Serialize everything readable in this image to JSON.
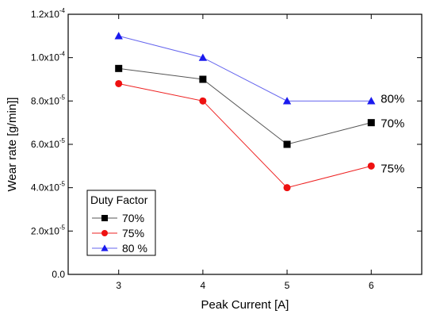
{
  "chart_data": {
    "type": "line",
    "xlabel": "Peak Current [A]",
    "ylabel": "Wear rate [g/min]]",
    "x": [
      3,
      4,
      5,
      6
    ],
    "xlim": [
      2.4,
      6.6
    ],
    "ylim": [
      0,
      0.00012
    ],
    "x_ticks": [
      "3",
      "4",
      "5",
      "6"
    ],
    "y_ticks": [
      {
        "value": 0,
        "label": "0.0"
      },
      {
        "value": 2e-05,
        "mantissa": "2.0x10",
        "exp": "-5"
      },
      {
        "value": 4e-05,
        "mantissa": "4.0x10",
        "exp": "-5"
      },
      {
        "value": 6e-05,
        "mantissa": "6.0x10",
        "exp": "-5"
      },
      {
        "value": 8e-05,
        "mantissa": "8.0x10",
        "exp": "-5"
      },
      {
        "value": 0.0001,
        "mantissa": "1.0x10",
        "exp": "-4"
      },
      {
        "value": 0.00012,
        "mantissa": "1.2x10",
        "exp": "-4"
      }
    ],
    "grid": false,
    "legend": {
      "title": "Duty Factor",
      "placement": "bottom-left"
    },
    "series": [
      {
        "name": "70%",
        "legend_label": "70%",
        "end_label": "70%",
        "marker": "square",
        "color": "#000000",
        "line_color": "#555555",
        "values": [
          9.5e-05,
          9e-05,
          6e-05,
          7e-05
        ]
      },
      {
        "name": "75%",
        "legend_label": "75%",
        "end_label": "75%",
        "marker": "circle",
        "color": "#ee1111",
        "line_color": "#ee2222",
        "values": [
          8.8e-05,
          8e-05,
          4e-05,
          5e-05
        ]
      },
      {
        "name": "80 %",
        "legend_label": "80 %",
        "end_label": "80%",
        "marker": "triangle",
        "color": "#1a1aee",
        "line_color": "#6666ee",
        "values": [
          0.00011,
          0.0001,
          8e-05,
          8e-05
        ]
      }
    ]
  }
}
